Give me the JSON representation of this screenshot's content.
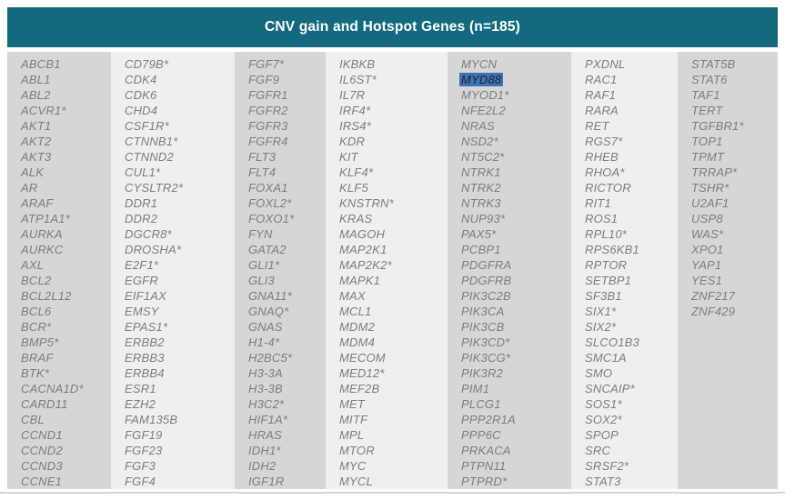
{
  "title": "CNV gain and Hotspot Genes (n=185)",
  "gene_count": 185,
  "highlighted_gene": "MYD88",
  "colors": {
    "header_bg": "#136a7e",
    "header_text": "#ffffff",
    "column_dark": "#d6d6d6",
    "column_light": "#efefef",
    "gene_text": "#7d7d7d",
    "highlight_bg": "#3d73b4",
    "highlight_text": "#20242e"
  },
  "columns": [
    {
      "genes": [
        "ABCB1",
        "ABL1",
        "ABL2",
        "ACVR1*",
        "AKT1",
        "AKT2",
        "AKT3",
        "ALK",
        "AR",
        "ARAF",
        "ATP1A1*",
        "AURKA",
        "AURKC",
        "AXL",
        "BCL2",
        "BCL2L12",
        "BCL6",
        "BCR*",
        "BMP5*",
        "BRAF",
        "BTK*",
        "CACNA1D*",
        "CARD11",
        "CBL",
        "CCND1",
        "CCND2",
        "CCND3",
        "CCNE1"
      ]
    },
    {
      "genes": [
        "CD79B*",
        "CDK4",
        "CDK6",
        "CHD4",
        "CSF1R*",
        "CTNNB1*",
        "CTNND2",
        "CUL1*",
        "CYSLTR2*",
        "DDR1",
        "DDR2",
        "DGCR8*",
        "DROSHA*",
        "E2F1*",
        "EGFR",
        "EIF1AX",
        "EMSY",
        "EPAS1*",
        "ERBB2",
        "ERBB3",
        "ERBB4",
        "ESR1",
        "EZH2",
        "FAM135B",
        "FGF19",
        "FGF23",
        "FGF3",
        "FGF4"
      ]
    },
    {
      "genes": [
        "FGF7*",
        "FGF9",
        "FGFR1",
        "FGFR2",
        "FGFR3",
        "FGFR4",
        "FLT3",
        "FLT4",
        "FOXA1",
        "FOXL2*",
        "FOXO1*",
        "FYN",
        "GATA2",
        "GLI1*",
        "GLI3",
        "GNA11*",
        "GNAQ*",
        "GNAS",
        "H1-4*",
        "H2BC5*",
        "H3-3A",
        "H3-3B",
        "H3C2*",
        "HIF1A*",
        "HRAS",
        "IDH1*",
        "IDH2",
        "IGF1R"
      ]
    },
    {
      "genes": [
        "IKBKB",
        "IL6ST*",
        "IL7R",
        "IRF4*",
        "IRS4*",
        "KDR",
        "KIT",
        "KLF4*",
        "KLF5",
        "KNSTRN*",
        "KRAS",
        "MAGOH",
        "MAP2K1",
        "MAP2K2*",
        "MAPK1",
        "MAX",
        "MCL1",
        "MDM2",
        "MDM4",
        "MECOM",
        "MED12*",
        "MEF2B",
        "MET",
        "MITF",
        "MPL",
        "MTOR",
        "MYC",
        "MYCL"
      ]
    },
    {
      "genes": [
        "MYCN",
        "MYD88",
        "MYOD1*",
        "NFE2L2",
        "NRAS",
        "NSD2*",
        "NT5C2*",
        "NTRK1",
        "NTRK2",
        "NTRK3",
        "NUP93*",
        "PAX5*",
        "PCBP1",
        "PDGFRA",
        "PDGFRB",
        "PIK3C2B",
        "PIK3CA",
        "PIK3CB",
        "PIK3CD*",
        "PIK3CG*",
        "PIK3R2",
        "PIM1",
        "PLCG1",
        "PPP2R1A",
        "PPP6C",
        "PRKACA",
        "PTPN11",
        "PTPRD*"
      ]
    },
    {
      "genes": [
        "PXDNL",
        "RAC1",
        "RAF1",
        "RARA",
        "RET",
        "RGS7*",
        "RHEB",
        "RHOA*",
        "RICTOR",
        "RIT1",
        "ROS1",
        "RPL10*",
        "RPS6KB1",
        "RPTOR",
        "SETBP1",
        "SF3B1",
        "SIX1*",
        "SIX2*",
        "SLCO1B3",
        "SMC1A",
        "SMO",
        "SNCAIP*",
        "SOS1*",
        "SOX2*",
        "SPOP",
        "SRC",
        "SRSF2*",
        "STAT3"
      ]
    },
    {
      "genes": [
        "STAT5B",
        "STAT6",
        "TAF1",
        "TERT",
        "TGFBR1*",
        "TOP1",
        "TPMT",
        "TRRAP*",
        "TSHR*",
        "U2AF1",
        "USP8",
        "WAS*",
        "XPO1",
        "YAP1",
        "YES1",
        "ZNF217",
        "ZNF429"
      ]
    }
  ]
}
